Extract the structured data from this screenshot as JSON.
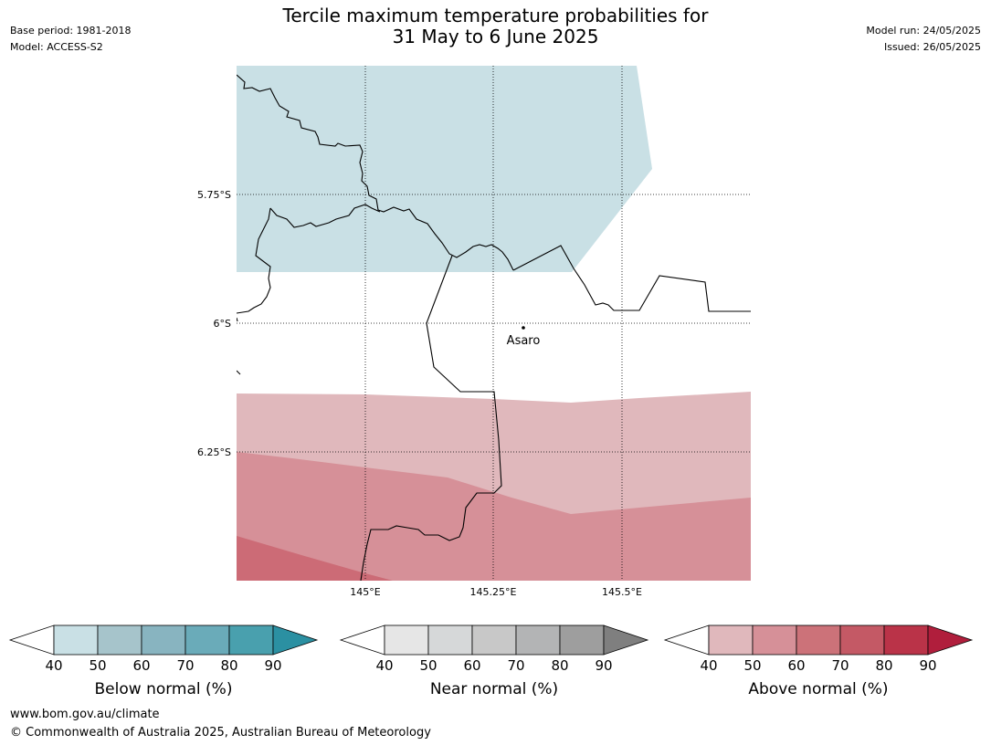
{
  "header": {
    "base_period": "Base period: 1981-2018",
    "model": "Model: ACCESS-S2",
    "title_line1": "Tercile maximum temperature probabilities for",
    "title_line2": "31 May to 6 June 2025",
    "model_run": "Model run: 24/05/2025",
    "issued": "Issued: 26/05/2025"
  },
  "map": {
    "lat_labels": [
      "5.75°S",
      "6°S",
      "6.25°S"
    ],
    "lon_labels": [
      "145°E",
      "145.25°E",
      "145.5°E"
    ],
    "place": {
      "name": "Asaro"
    },
    "shading": {
      "below_normal_40_50": "#c9e0e5",
      "above_normal_40_50": "#e0b8bc",
      "above_normal_50_60": "#d69098",
      "above_normal_60_70": "#cc6b76"
    }
  },
  "colorbars": [
    {
      "title": "Below normal (%)",
      "ticks": [
        "40",
        "50",
        "60",
        "70",
        "80",
        "90"
      ],
      "colors": [
        "#c9e0e5",
        "#a6c4cb",
        "#88b4c0",
        "#6aabb9",
        "#49a0ae",
        "#2b90a2"
      ]
    },
    {
      "title": "Near normal (%)",
      "ticks": [
        "40",
        "50",
        "60",
        "70",
        "80",
        "90"
      ],
      "colors": [
        "#e6e6e6",
        "#d6d8d9",
        "#c8c8c8",
        "#b3b4b5",
        "#9e9e9e",
        "#7f7f7f"
      ]
    },
    {
      "title": "Above normal (%)",
      "ticks": [
        "40",
        "50",
        "60",
        "70",
        "80",
        "90"
      ],
      "colors": [
        "#e0b8bc",
        "#d69098",
        "#cc7279",
        "#c45965",
        "#ba3348",
        "#b01e3c"
      ]
    }
  ],
  "footer": {
    "url": "www.bom.gov.au/climate",
    "copyright": "© Commonwealth of Australia 2025, Australian Bureau of Meteorology"
  }
}
